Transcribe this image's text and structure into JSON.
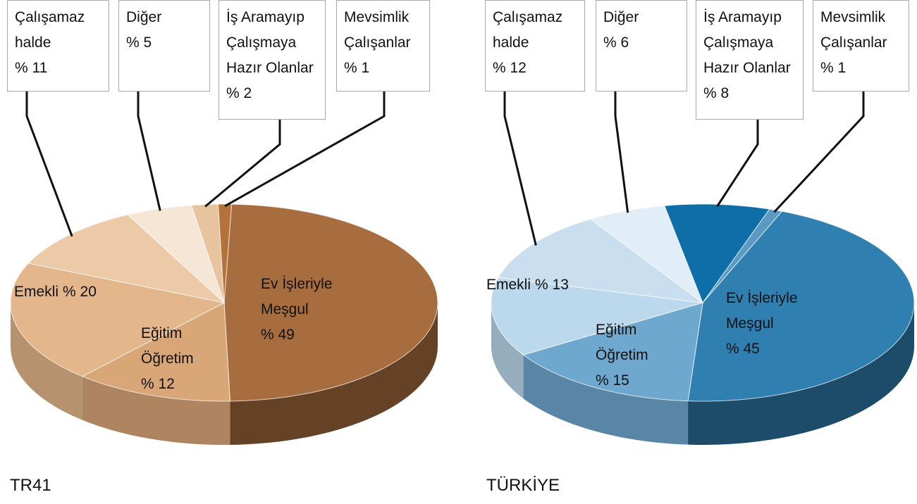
{
  "chart_data": [
    {
      "type": "pie",
      "title": "TR41",
      "categories": [
        "Ev İşleriyle Meşgul",
        "Eğitim Öğretim",
        "Emekli",
        "Çalışamaz halde",
        "Diğer",
        "İş Aramayıp Çalışmaya Hazır Olanlar",
        "Mevsimlik Çalışanlar"
      ],
      "values": [
        49,
        12,
        20,
        11,
        5,
        2,
        1
      ],
      "value_labels": [
        "% 49",
        "% 12",
        "% 20",
        "% 11",
        "% 5",
        "% 2",
        "% 1"
      ],
      "colors": [
        "#a86d3e",
        "#d9a678",
        "#e4b68b",
        "#eccaa8",
        "#f6e6d5",
        "#e8c3a0",
        "#b5713a"
      ]
    },
    {
      "type": "pie",
      "title": "TÜRKİYE",
      "categories": [
        "Ev İşleriyle Meşgul",
        "Eğitim Öğretim",
        "Emekli",
        "Çalışamaz halde",
        "Diğer",
        "İş Aramayıp Çalışmaya Hazır Olanlar",
        "Mevsimlik Çalışanlar"
      ],
      "values": [
        45,
        15,
        13,
        12,
        6,
        8,
        1
      ],
      "value_labels": [
        "% 45",
        "% 15",
        "% 13",
        "% 12",
        "% 6",
        "% 8",
        "% 1"
      ],
      "colors": [
        "#2f7fb0",
        "#6fa8cf",
        "#bcd8ec",
        "#c9dff0",
        "#e1edf7",
        "#0e6ea8",
        "#5a9ac5"
      ]
    }
  ]
}
